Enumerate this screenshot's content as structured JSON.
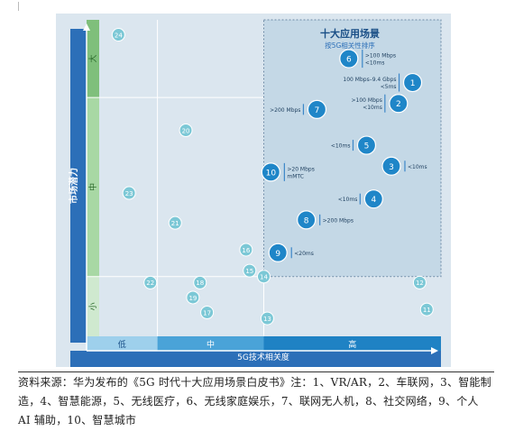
{
  "chart_data": {
    "type": "scatter",
    "title": "十大应用场景",
    "subtitle": "按5G相关性排序",
    "xlabel": "5G技术相关度",
    "ylabel": "市场潜力",
    "x_bands": [
      "低",
      "中",
      "高"
    ],
    "y_bands": [
      "大",
      "中",
      "小"
    ],
    "highlight_region": "高 × 大/中",
    "ranked_points": [
      {
        "label": "1",
        "x": 9.2,
        "y": 8.5,
        "annotation": "100 Mbps–9.4 Gbps\n<5ms",
        "ann_side": "left"
      },
      {
        "label": "2",
        "x": 8.8,
        "y": 7.8,
        "annotation": ">100 Mbps\n<10ms",
        "ann_side": "left"
      },
      {
        "label": "3",
        "x": 8.6,
        "y": 5.7,
        "annotation": "<10ms",
        "ann_side": "right"
      },
      {
        "label": "4",
        "x": 8.1,
        "y": 4.6,
        "annotation": "<10ms",
        "ann_side": "left"
      },
      {
        "label": "5",
        "x": 7.9,
        "y": 6.4,
        "annotation": "<10ms",
        "ann_side": "left"
      },
      {
        "label": "6",
        "x": 7.4,
        "y": 9.3,
        "annotation": ">100 Mbps\n<10ms",
        "ann_side": "right"
      },
      {
        "label": "7",
        "x": 6.5,
        "y": 7.6,
        "annotation": ">200 Mbps",
        "ann_side": "left"
      },
      {
        "label": "8",
        "x": 6.2,
        "y": 3.9,
        "annotation": ">200 Mbps",
        "ann_side": "right"
      },
      {
        "label": "9",
        "x": 5.4,
        "y": 2.8,
        "annotation": "<20ms",
        "ann_side": "right"
      },
      {
        "label": "10",
        "x": 5.2,
        "y": 5.5,
        "annotation": ">20 Mbps\nmMTC",
        "ann_side": "right"
      }
    ],
    "other_points": [
      {
        "label": "11",
        "x": 9.6,
        "y": 0.9
      },
      {
        "label": "12",
        "x": 9.4,
        "y": 1.8
      },
      {
        "label": "13",
        "x": 5.1,
        "y": 0.6
      },
      {
        "label": "14",
        "x": 5.0,
        "y": 2.0
      },
      {
        "label": "15",
        "x": 4.6,
        "y": 2.2
      },
      {
        "label": "16",
        "x": 4.5,
        "y": 2.9
      },
      {
        "label": "17",
        "x": 3.4,
        "y": 0.8
      },
      {
        "label": "18",
        "x": 3.2,
        "y": 1.8
      },
      {
        "label": "19",
        "x": 3.0,
        "y": 1.3
      },
      {
        "label": "20",
        "x": 2.8,
        "y": 6.9
      },
      {
        "label": "21",
        "x": 2.5,
        "y": 3.8
      },
      {
        "label": "22",
        "x": 1.8,
        "y": 1.8
      },
      {
        "label": "23",
        "x": 1.2,
        "y": 4.8
      },
      {
        "label": "24",
        "x": 0.9,
        "y": 10.1
      }
    ],
    "xlim": [
      0,
      10
    ],
    "ylim": [
      0,
      10.6
    ],
    "x_band_edges": [
      0,
      2,
      5,
      10
    ],
    "y_band_edges": [
      0,
      2,
      8,
      10.6
    ],
    "grid": true,
    "colors": {
      "plot_bg": "#dbe6ef",
      "highlight_bg": "#c4d8e6",
      "highlight_border": "#6d8aa6",
      "axis": "#2c6fb8",
      "band_light": "#cfe9cf",
      "band_mid": "#a8d8a4",
      "band_strong": "#7fbf7b",
      "xband_light": "#9ed0ec",
      "xband_mid": "#4aa3d8",
      "xband_strong": "#1f82c4",
      "ranked_dot": "#1f86c8",
      "other_dot": "#7cc8d6",
      "annotation_bar": "#3b86c8",
      "title": "#1a4f87"
    }
  },
  "caption": "资料来源：华为发布的《5G 时代十大应用场景白皮书》注：1、VR/AR，2、车联网，3、智能制造，4、智慧能源，5、无线医疗，6、无线家庭娱乐，7、联网无人机，8、社交网络，9、个人 AI 辅助，10、智慧城市"
}
